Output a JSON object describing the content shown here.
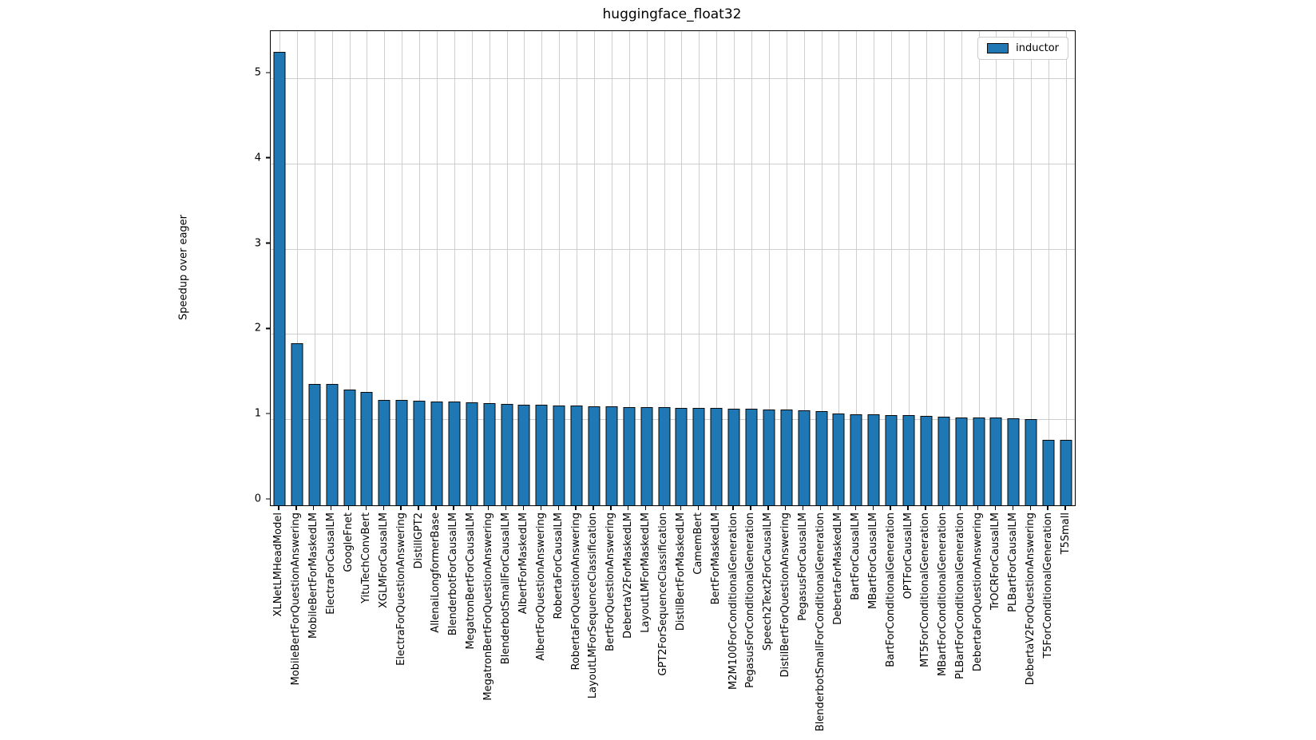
{
  "chart_data": {
    "type": "bar",
    "title": "huggingface_float32",
    "xlabel": "",
    "ylabel": "Speedup over eager",
    "legend": [
      {
        "label": "inductor",
        "color": "#1f77b4"
      }
    ],
    "legend_position": "upper right",
    "grid": true,
    "ylim": [
      0,
      5.56
    ],
    "yticks": [
      0,
      1,
      2,
      3,
      4,
      5
    ],
    "bar_color": "#1f77b4",
    "bar_edge_color": "#000000",
    "categories": [
      "XLNetLMHeadModel",
      "MobileBertForQuestionAnswering",
      "MobileBertForMaskedLM",
      "ElectraForCausalLM",
      "GoogleFnet",
      "YituTechConvBert",
      "XGLMForCausalLM",
      "ElectraForQuestionAnswering",
      "DistillGPT2",
      "AllenaiLongformerBase",
      "BlenderbotForCausalLM",
      "MegatronBertForCausalLM",
      "MegatronBertForQuestionAnswering",
      "BlenderbotSmallForCausalLM",
      "AlbertForMaskedLM",
      "AlbertForQuestionAnswering",
      "RobertaForCausalLM",
      "RobertaForQuestionAnswering",
      "LayoutLMForSequenceClassification",
      "BertForQuestionAnswering",
      "DebertaV2ForMaskedLM",
      "LayoutLMForMaskedLM",
      "GPT2ForSequenceClassification",
      "DistilBertForMaskedLM",
      "CamemBert",
      "BertForMaskedLM",
      "M2M100ForConditionalGeneration",
      "PegasusForConditionalGeneration",
      "Speech2Text2ForCausalLM",
      "DistilBertForQuestionAnswering",
      "PegasusForCausalLM",
      "BlenderbotSmallForConditionalGeneration",
      "DebertaForMaskedLM",
      "BartForCausalLM",
      "MBartForCausalLM",
      "BartForConditionalGeneration",
      "OPTForCausalLM",
      "MT5ForConditionalGeneration",
      "MBartForConditionalGeneration",
      "PLBartForConditionalGeneration",
      "DebertaForQuestionAnswering",
      "TrOCRForCausalLM",
      "PLBartForCausalLM",
      "DebertaV2ForQuestionAnswering",
      "T5ForConditionalGeneration",
      "T5Small"
    ],
    "values": [
      5.32,
      1.9,
      1.42,
      1.42,
      1.36,
      1.33,
      1.24,
      1.24,
      1.23,
      1.22,
      1.22,
      1.21,
      1.2,
      1.19,
      1.18,
      1.18,
      1.17,
      1.17,
      1.16,
      1.16,
      1.15,
      1.15,
      1.15,
      1.14,
      1.14,
      1.14,
      1.13,
      1.13,
      1.12,
      1.12,
      1.11,
      1.1,
      1.08,
      1.07,
      1.07,
      1.06,
      1.06,
      1.05,
      1.04,
      1.03,
      1.03,
      1.03,
      1.02,
      1.01,
      0.77,
      0.77
    ]
  }
}
